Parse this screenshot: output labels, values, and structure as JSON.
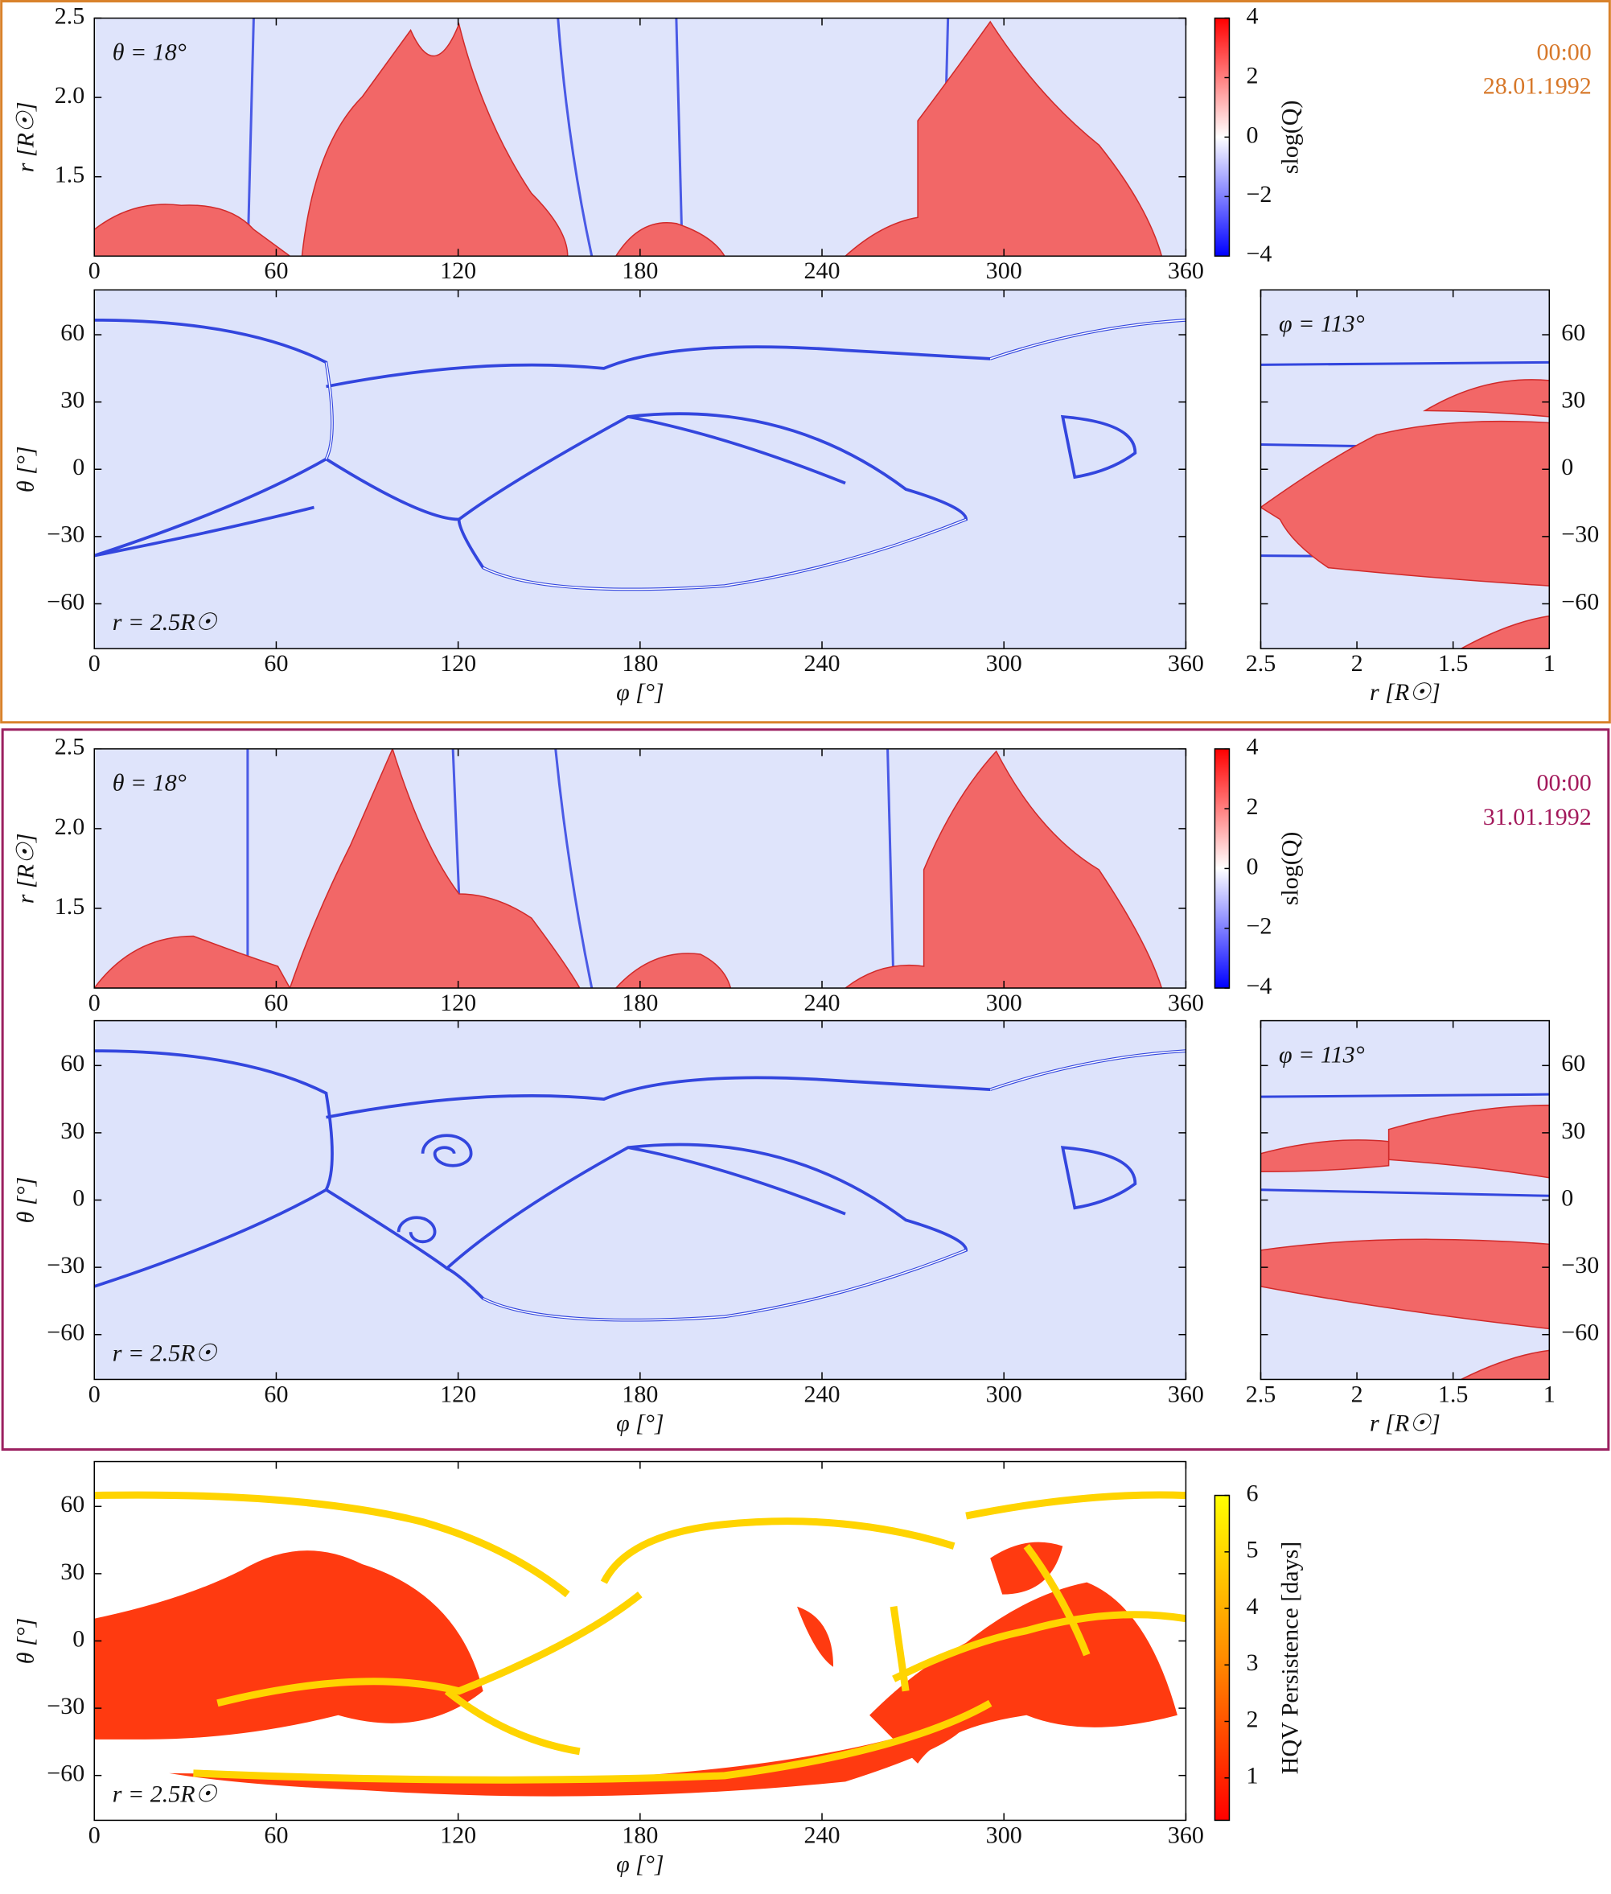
{
  "chart_data": [
    {
      "type": "heatmap",
      "annotation": "θ = 18°",
      "annotation_pos": "top-left",
      "ylabel": "r [R☉]",
      "xlim": [
        0,
        360
      ],
      "xticks": [
        0,
        60,
        120,
        180,
        240,
        300,
        360
      ],
      "ylim": [
        1,
        2.5
      ],
      "yticks": [
        1.5,
        {
          "value": 2,
          "label": "2.0"
        },
        2.5
      ],
      "yaxis_side": "left",
      "time": "00:00",
      "date": "28.01.1992",
      "stamp_color": "orange",
      "colorbar": {
        "label": "slog(Q)",
        "lim": [
          -4,
          4
        ],
        "ticks": [
          {
            "value": -4,
            "label": "−4"
          },
          {
            "value": -2,
            "label": "−2"
          },
          0,
          2,
          4
        ],
        "colors": [
          "#0000ff",
          "#ffffff",
          "#ff0000"
        ]
      }
    },
    {
      "type": "heatmap",
      "annotation": "r = 2.5R☉",
      "annotation_pos": "bottom-left",
      "xlabel": "φ [°]",
      "ylabel": "θ [°]",
      "xlim": [
        0,
        360
      ],
      "xticks": [
        0,
        60,
        120,
        180,
        240,
        300,
        360
      ],
      "ylim": [
        -80,
        80
      ],
      "yticks": [
        {
          "value": -60,
          "label": "−60"
        },
        {
          "value": -30,
          "label": "−30"
        },
        0,
        30,
        60
      ],
      "yaxis_side": "left"
    },
    {
      "type": "heatmap",
      "annotation": "φ = 113°",
      "annotation_pos": "top-left",
      "xlabel": "r [R☉]",
      "xlim": [
        2.5,
        1
      ],
      "xticks": [
        2.5,
        2,
        1.5,
        1
      ],
      "ylim": [
        -80,
        80
      ],
      "yticks": [
        {
          "value": -60,
          "label": "−60"
        },
        {
          "value": -30,
          "label": "−30"
        },
        0,
        30,
        60
      ],
      "yaxis_side": "right"
    },
    {
      "type": "heatmap",
      "annotation": "θ = 18°",
      "annotation_pos": "top-left",
      "ylabel": "r [R☉]",
      "xlim": [
        0,
        360
      ],
      "xticks": [
        0,
        60,
        120,
        180,
        240,
        300,
        360
      ],
      "ylim": [
        1,
        2.5
      ],
      "yticks": [
        1.5,
        {
          "value": 2,
          "label": "2.0"
        },
        2.5
      ],
      "yaxis_side": "left",
      "time": "00:00",
      "date": "31.01.1992",
      "stamp_color": "purple",
      "colorbar": {
        "label": "slog(Q)",
        "lim": [
          -4,
          4
        ],
        "ticks": [
          {
            "value": -4,
            "label": "−4"
          },
          {
            "value": -2,
            "label": "−2"
          },
          0,
          2,
          4
        ],
        "colors": [
          "#0000ff",
          "#ffffff",
          "#ff0000"
        ]
      }
    },
    {
      "type": "heatmap",
      "annotation": "r = 2.5R☉",
      "annotation_pos": "bottom-left",
      "xlabel": "φ [°]",
      "ylabel": "θ [°]",
      "xlim": [
        0,
        360
      ],
      "xticks": [
        0,
        60,
        120,
        180,
        240,
        300,
        360
      ],
      "ylim": [
        -80,
        80
      ],
      "yticks": [
        {
          "value": -60,
          "label": "−60"
        },
        {
          "value": -30,
          "label": "−30"
        },
        0,
        30,
        60
      ],
      "yaxis_side": "left"
    },
    {
      "type": "heatmap",
      "annotation": "φ = 113°",
      "annotation_pos": "top-left",
      "xlabel": "r [R☉]",
      "xlim": [
        2.5,
        1
      ],
      "xticks": [
        2.5,
        2,
        1.5,
        1
      ],
      "ylim": [
        -80,
        80
      ],
      "yticks": [
        {
          "value": -60,
          "label": "−60"
        },
        {
          "value": -30,
          "label": "−30"
        },
        0,
        30,
        60
      ],
      "yaxis_side": "right"
    },
    {
      "type": "heatmap",
      "annotation": "r = 2.5R☉",
      "annotation_pos": "bottom-left",
      "xlabel": "φ [°]",
      "ylabel": "θ [°]",
      "xlim": [
        0,
        360
      ],
      "xticks": [
        0,
        60,
        120,
        180,
        240,
        300,
        360
      ],
      "ylim": [
        -80,
        80
      ],
      "yticks": [
        {
          "value": -60,
          "label": "−60"
        },
        {
          "value": -30,
          "label": "−30"
        },
        0,
        30,
        60
      ],
      "yaxis_side": "left",
      "colorbar": {
        "label": "HQV Persistence [days]",
        "lim": [
          0.25,
          6
        ],
        "ticks": [
          1,
          2,
          3,
          4,
          5,
          6
        ],
        "colors": [
          "#ff0000",
          "#ff8c00",
          "#ffff00"
        ]
      }
    }
  ]
}
